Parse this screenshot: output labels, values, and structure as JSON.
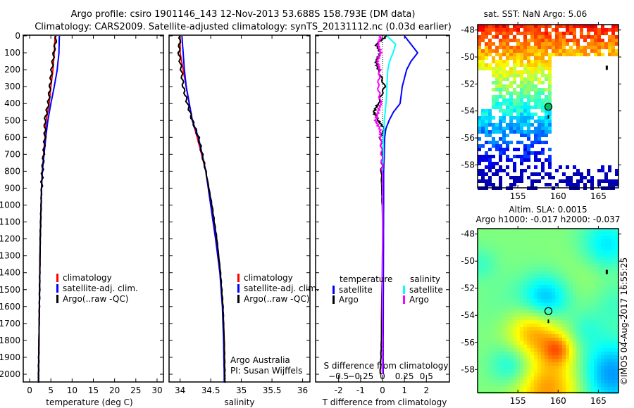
{
  "title": {
    "line1": "Argo profile: csiro 1901146_143 12-Nov-2013 53.688S 158.793E (DM data)",
    "line2": "Climatology: CARS2009. Satellite-adjusted climatology: synTS_20131112.nc (0.03d earlier)"
  },
  "colors": {
    "climatology": "#ff0000",
    "satellite": "#0000ff",
    "argo": "#000000",
    "sal_satellite": "#00ffff",
    "sal_argo": "#ff00ff"
  },
  "chart_data": [
    {
      "type": "line",
      "name": "temperature-profile",
      "xlabel": "temperature (deg C)",
      "xlim": [
        -2,
        31
      ],
      "ylim": [
        0,
        2050
      ],
      "y_reversed": true,
      "xticks": [
        "0",
        "5",
        "10",
        "15",
        "20",
        "25",
        "30"
      ],
      "yticks": [
        "0",
        "100",
        "200",
        "300",
        "400",
        "500",
        "600",
        "700",
        "800",
        "900",
        "1000",
        "1100",
        "1200",
        "1300",
        "1400",
        "1500",
        "1600",
        "1700",
        "1800",
        "1900",
        "2000"
      ],
      "depth": [
        0,
        100,
        200,
        300,
        400,
        500,
        600,
        700,
        800,
        900,
        1000,
        1200,
        1400,
        1600,
        1800,
        2000,
        2050
      ],
      "legend": [
        "climatology",
        "satellite-adj. clim.",
        "Argo(..raw -QC)"
      ],
      "series": [
        {
          "name": "climatology",
          "values": [
            6.0,
            5.8,
            5.5,
            5.0,
            4.6,
            3.9,
            3.6,
            3.3,
            3.0,
            2.8,
            2.7,
            2.5,
            2.4,
            2.3,
            2.2,
            2.1,
            2.1
          ]
        },
        {
          "name": "satellite-adj. clim.",
          "values": [
            7.0,
            6.9,
            6.5,
            5.8,
            5.0,
            4.3,
            3.8,
            3.4,
            3.0,
            2.8,
            2.7,
            2.5,
            2.4,
            2.3,
            2.2,
            2.1,
            2.1
          ]
        },
        {
          "name": "Argo(..raw -QC)",
          "values": [
            6.3,
            5.7,
            5.2,
            4.8,
            4.4,
            3.6,
            3.6,
            3.3,
            3.0,
            2.8,
            2.7,
            2.5,
            2.4,
            2.3,
            2.2,
            2.1,
            2.1
          ]
        }
      ]
    },
    {
      "type": "line",
      "name": "salinity-profile",
      "xlabel": "salinity",
      "xlim": [
        33.9,
        36.1
      ],
      "ylim": [
        0,
        2050
      ],
      "y_reversed": true,
      "xticks": [
        "34",
        "34.5",
        "35",
        "35.5",
        "36"
      ],
      "depth": [
        0,
        100,
        200,
        300,
        400,
        500,
        600,
        800,
        1000,
        1200,
        1400,
        1600,
        1800,
        2000,
        2050
      ],
      "legend": [
        "climatology",
        "satellite-adj. clim.",
        "Argo(..raw -QC)"
      ],
      "annotation": [
        "Argo Australia",
        "PI: Susan Wijffels"
      ],
      "series": [
        {
          "name": "climatology",
          "values": [
            34.0,
            34.0,
            34.05,
            34.1,
            34.15,
            34.2,
            34.28,
            34.42,
            34.5,
            34.58,
            34.65,
            34.7,
            34.72,
            34.73,
            34.73
          ]
        },
        {
          "name": "satellite-adj. clim.",
          "values": [
            34.03,
            34.05,
            34.07,
            34.1,
            34.15,
            34.2,
            34.3,
            34.42,
            34.5,
            34.58,
            34.65,
            34.69,
            34.71,
            34.72,
            34.72
          ]
        },
        {
          "name": "Argo(..raw -QC)",
          "values": [
            34.0,
            33.98,
            34.02,
            34.05,
            34.12,
            34.2,
            34.3,
            34.42,
            34.52,
            34.6,
            34.66,
            34.7,
            34.72,
            34.73,
            34.73
          ]
        }
      ]
    },
    {
      "type": "line",
      "name": "difference-profile",
      "xlabel": "T difference from climatology",
      "x2label": "S difference from climatology",
      "xlim": [
        -3,
        3
      ],
      "x2lim": [
        -0.75,
        0.75
      ],
      "ylim": [
        0,
        2050
      ],
      "y_reversed": true,
      "xticks": [
        "-2",
        "-1",
        "0",
        "1",
        "2"
      ],
      "x2ticks": [
        "-0.5",
        "-0.25",
        "0",
        "0.25",
        "0.5"
      ],
      "depth": [
        0,
        50,
        100,
        150,
        200,
        300,
        400,
        450,
        500,
        550,
        600,
        700,
        800,
        1000,
        1400,
        1800,
        2000
      ],
      "legend_headers": [
        "temperature",
        "salinity"
      ],
      "legend": [
        "satellite",
        "Argo",
        "satellite",
        "Argo"
      ],
      "series": [
        {
          "name": "T satellite",
          "axis": "T",
          "values": [
            1.0,
            1.3,
            1.6,
            1.3,
            1.1,
            0.9,
            0.8,
            0.5,
            0.3,
            0.15,
            0.1,
            0.08,
            0.05,
            0.05,
            0.04,
            0.03,
            0.03
          ]
        },
        {
          "name": "T Argo",
          "axis": "T",
          "values": [
            0.2,
            -0.3,
            -0.1,
            -0.3,
            -0.2,
            0.1,
            -0.2,
            -0.4,
            -0.2,
            0.1,
            -0.1,
            0.0,
            -0.05,
            -0.02,
            0.0,
            -0.05,
            -0.1
          ]
        },
        {
          "name": "S satellite",
          "axis": "S",
          "values": [
            0.05,
            0.15,
            0.12,
            0.08,
            0.06,
            0.05,
            0.04,
            0.03,
            0.02,
            0.02,
            0.01,
            0.01,
            0.0,
            0.0,
            0.0,
            0.0,
            0.0
          ]
        },
        {
          "name": "S Argo",
          "axis": "S",
          "values": [
            -0.02,
            -0.05,
            -0.02,
            -0.06,
            -0.03,
            -0.05,
            -0.02,
            -0.05,
            -0.08,
            -0.03,
            -0.02,
            -0.01,
            0.0,
            0.0,
            0.0,
            0.0,
            0.0
          ]
        }
      ]
    },
    {
      "type": "heatmap",
      "name": "sst-map",
      "title": "sat. SST: NaN Argo: 5.06",
      "xticks": [
        "155",
        "160",
        "165"
      ],
      "yticks": [
        "-48",
        "-50",
        "-52",
        "-54",
        "-56",
        "-58"
      ],
      "xlim": [
        150,
        167.5
      ],
      "ylim": [
        -59.7,
        -47.6
      ],
      "argo_position": {
        "lon": 158.793,
        "lat": -53.688
      }
    },
    {
      "type": "heatmap",
      "name": "sla-map",
      "title": "Altim. SLA: 0.0015",
      "subtitle": "Argo h1000: -0.017 h2000: -0.037",
      "xticks": [
        "155",
        "160",
        "165"
      ],
      "yticks": [
        "-48",
        "-50",
        "-52",
        "-54",
        "-56",
        "-58"
      ],
      "xlim": [
        150,
        167.5
      ],
      "ylim": [
        -59.7,
        -47.6
      ],
      "argo_position": {
        "lon": 158.793,
        "lat": -53.688
      }
    }
  ],
  "credit": "©IMOS 04-Aug-2017 16:55:25"
}
